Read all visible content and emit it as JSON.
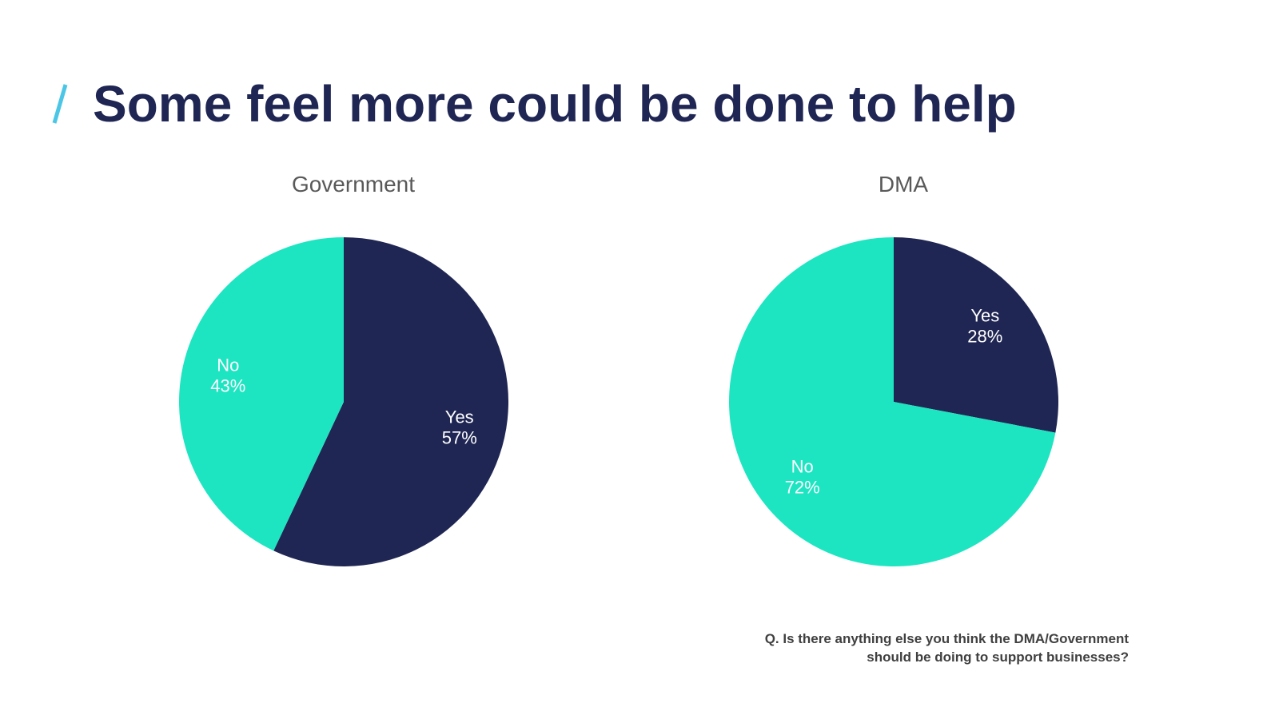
{
  "slide": {
    "title": "Some feel more could be done to help",
    "question_line1": "Q. Is there anything else you think the DMA/Government",
    "question_line2": "should be doing to support businesses?"
  },
  "colors": {
    "accent": "#4cc6e6",
    "navy": "#1f2653",
    "teal": "#1de5c1",
    "label": "#ffffff"
  },
  "chart_data": [
    {
      "type": "pie",
      "title": "Government",
      "slices": [
        {
          "label": "Yes",
          "value": 57,
          "display": "57%",
          "color": "#1f2653"
        },
        {
          "label": "No",
          "value": 43,
          "display": "43%",
          "color": "#1de5c1"
        }
      ]
    },
    {
      "type": "pie",
      "title": "DMA",
      "slices": [
        {
          "label": "Yes",
          "value": 28,
          "display": "28%",
          "color": "#1f2653"
        },
        {
          "label": "No",
          "value": 72,
          "display": "72%",
          "color": "#1de5c1"
        }
      ]
    }
  ]
}
